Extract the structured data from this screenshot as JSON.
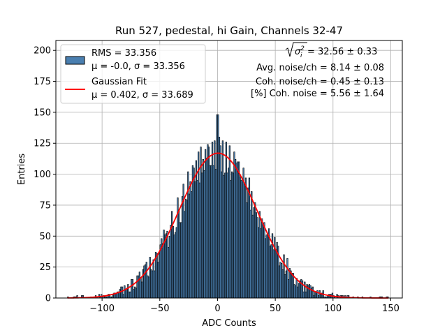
{
  "chart_data": {
    "type": "bar",
    "title": "Run 527, pedestal, hi Gain, Channels 32-47",
    "xlabel": "ADC Counts",
    "ylabel": "Entries",
    "xlim": [
      -140,
      160
    ],
    "ylim": [
      0,
      208
    ],
    "xticks": [
      -100,
      -50,
      0,
      50,
      100,
      150
    ],
    "yticks": [
      0,
      25,
      50,
      75,
      100,
      125,
      150,
      175,
      200
    ],
    "grid": true,
    "legend_position": "top-left",
    "histogram": {
      "name": "RMS = 33.356",
      "label_line2": "μ = -0.0, σ = 33.356",
      "bin_width": 1,
      "bin_start": -130,
      "bin_end": 148,
      "rms": 33.356,
      "mean": -0.0,
      "sigma": 33.356,
      "peak_entries": 148,
      "fill_color": "#4a7fb0",
      "edge_color": "#000000"
    },
    "series": [
      {
        "name": "Gaussian Fit",
        "label_line2": "μ = 0.402, σ = 33.689",
        "type": "line",
        "mu": 0.402,
        "sigma": 33.689,
        "amplitude": 117,
        "x_range": [
          -130,
          148
        ],
        "color": "#ff0000"
      }
    ],
    "annotations": [
      {
        "prefix": "",
        "text": " = 32.56 ± 0.33",
        "sqrt_sigma": true
      },
      {
        "text": "Avg. noise/ch = 8.14 ± 0.08"
      },
      {
        "text": "Coh. noise/ch = 0.45 ± 0.13"
      },
      {
        "text": "[%] Coh. noise = 5.56 ± 1.64"
      }
    ]
  }
}
